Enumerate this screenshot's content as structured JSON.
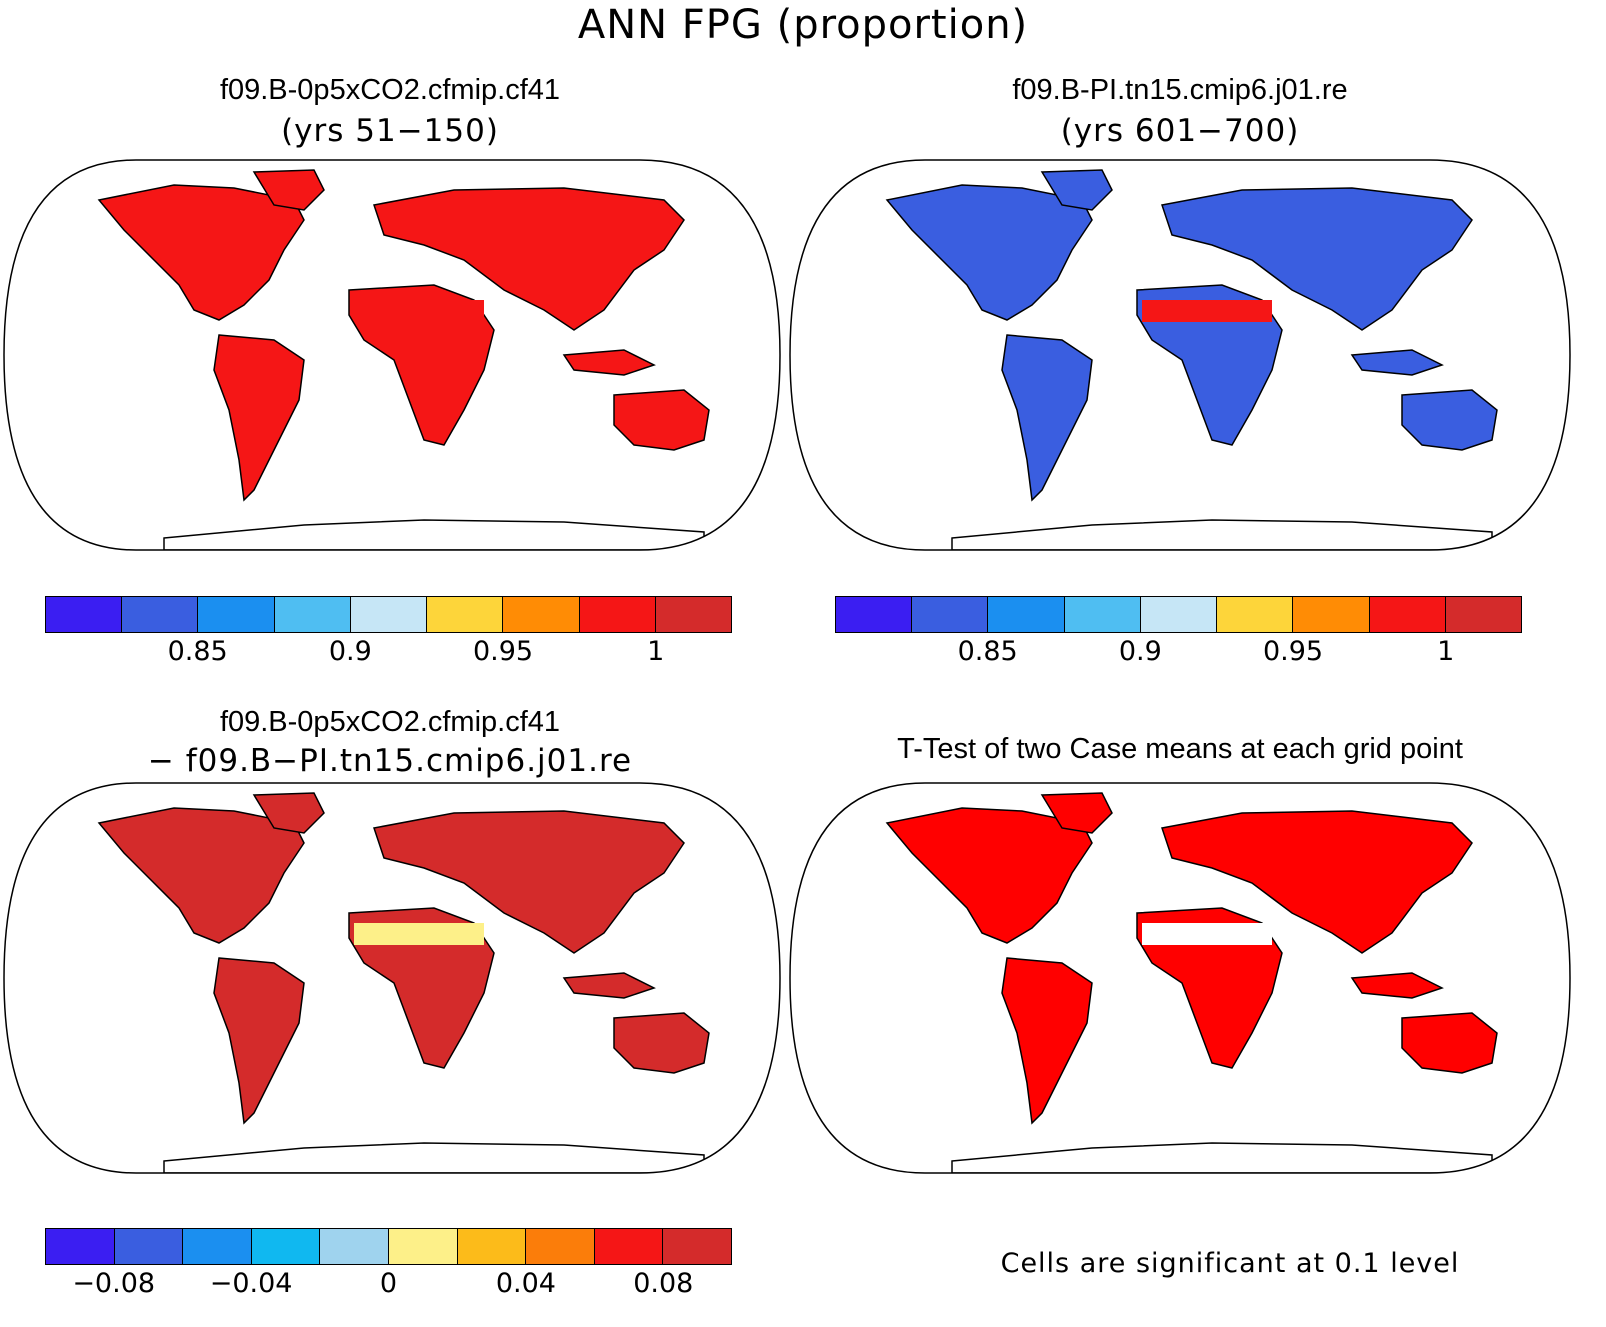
{
  "figure": {
    "title": "ANN FPG (proportion)"
  },
  "panels": [
    {
      "case": "f09.B-0p5xCO2.cfmip.cf41",
      "sub": "(yrs 51−150)",
      "colorbar": {
        "colors": [
          "#3b1ef2",
          "#3a5ee0",
          "#1b8ff0",
          "#4fbef2",
          "#c6e6f6",
          "#fdd53a",
          "#ff8c05",
          "#f51616",
          "#d42b2b"
        ],
        "labels": [
          "0.85",
          "0.9",
          "0.95",
          "1"
        ]
      },
      "dominant_color": "#f51616"
    },
    {
      "case": "f09.B-PI.tn15.cmip6.j01.re",
      "sub": "(yrs 601−700)",
      "colorbar": {
        "colors": [
          "#3b1ef2",
          "#3a5ee0",
          "#1b8ff0",
          "#4fbef2",
          "#c6e6f6",
          "#fdd53a",
          "#ff8c05",
          "#f51616",
          "#d42b2b"
        ],
        "labels": [
          "0.85",
          "0.9",
          "0.95",
          "1"
        ]
      },
      "dominant_color": "#3a5ee0"
    },
    {
      "case": "f09.B-0p5xCO2.cfmip.cf41",
      "sub": "− f09.B−PI.tn15.cmip6.j01.re",
      "colorbar": {
        "colors": [
          "#3b1ef2",
          "#3a5ee0",
          "#1b8ff0",
          "#10b8f0",
          "#9fd3ee",
          "#fdf089",
          "#fcbb1a",
          "#fb7d0a",
          "#f51616",
          "#d42b2b"
        ],
        "labels": [
          "−0.08",
          "−0.04",
          "0",
          "0.04",
          "0.08"
        ]
      },
      "dominant_color": "#d42b2b"
    },
    {
      "case": "T-Test of two Case means at each grid point",
      "note": "Cells are significant at 0.1 level",
      "dominant_color": "#ff0000"
    }
  ]
}
